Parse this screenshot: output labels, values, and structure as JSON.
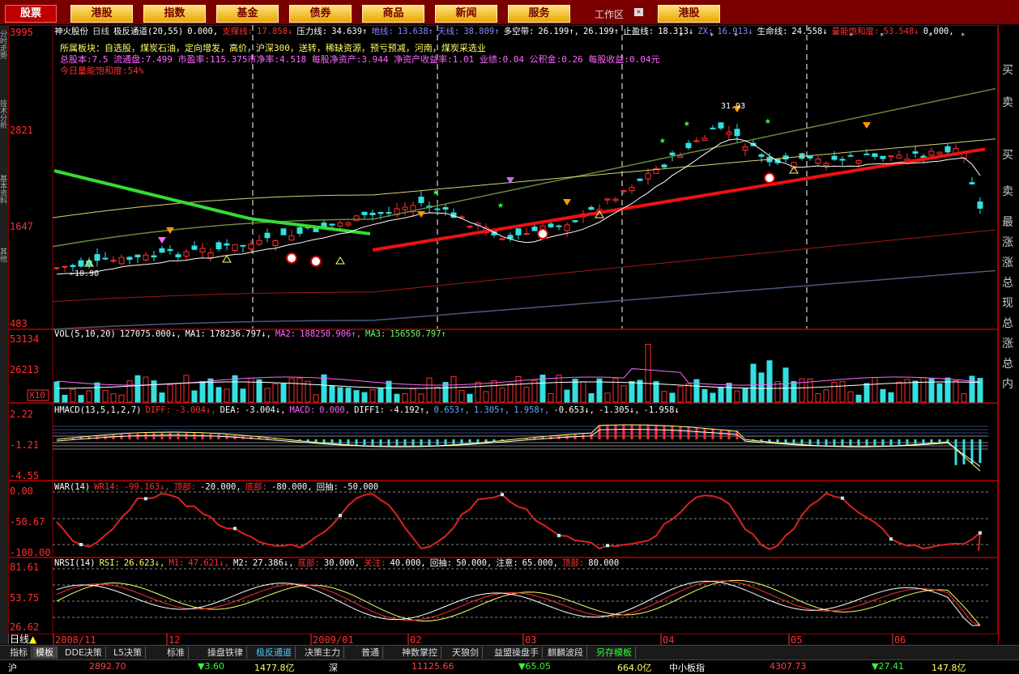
{
  "topbar": {
    "home": "股票",
    "buttons": [
      "港股",
      "指数",
      "基金",
      "债券",
      "商品",
      "新闻",
      "服务"
    ],
    "workspace": "工作区",
    "workspace_close": "✕",
    "right_button": "港股"
  },
  "leftbar": [
    "分时走势",
    "技术分析",
    "基本资料",
    "其他"
  ],
  "rightbar": [
    "买",
    "卖",
    "买",
    "卖",
    "最",
    "涨",
    "涨",
    "总",
    "现",
    "总",
    "涨",
    "总",
    "内"
  ],
  "main_panel": {
    "y_ticks": [
      "3995",
      "2821",
      "1647",
      "483"
    ],
    "header": [
      {
        "t": "神火股份",
        "c": "#ffffff"
      },
      {
        "t": "日线",
        "c": "#dddddd"
      },
      {
        "t": "极反通道(20,55)",
        "c": "#ffffff"
      },
      {
        "t": "0.000,",
        "c": "#ffffff"
      },
      {
        "t": "支撑线:",
        "c": "#ff3030"
      },
      {
        "t": "17.858↓",
        "c": "#ff3030"
      },
      {
        "t": "压力线:",
        "c": "#ffffff"
      },
      {
        "t": "34.639↑",
        "c": "#ffffff"
      },
      {
        "t": "地线:",
        "c": "#8888ff"
      },
      {
        "t": "13.638↑",
        "c": "#8888ff"
      },
      {
        "t": "天线:",
        "c": "#8888ff"
      },
      {
        "t": "38.809↑",
        "c": "#8888ff"
      },
      {
        "t": "多空带:",
        "c": "#ffffff"
      },
      {
        "t": "26.199↑,",
        "c": "#ffffff"
      },
      {
        "t": "26.199↑",
        "c": "#ffffff"
      },
      {
        "t": "止盈线:",
        "c": "#ffffff"
      },
      {
        "t": "18.313↓",
        "c": "#ffffff"
      },
      {
        "t": "ZX:",
        "c": "#8888ff"
      },
      {
        "t": "16.913↓",
        "c": "#8888ff"
      },
      {
        "t": "生命线:",
        "c": "#ffffff"
      },
      {
        "t": "24.558↓",
        "c": "#ffffff"
      },
      {
        "t": "量能饱和度:",
        "c": "#ff3030"
      },
      {
        "t": "53.548↓",
        "c": "#ff3030"
      },
      {
        "t": "0.000,",
        "c": "#ffffff"
      }
    ],
    "info_line1": "所属板块：自选股，煤炭石油，定向增发，高价，沪深300，送转，稀缺资源，预亏预减，河南，煤炭采选业",
    "info_line2": "总股本:7.5        流通盘:7.499  市盈率:115.375市净率:4.518  每股净资产:3.944 净资产收益率:1.01        业绩:0.04  公积金:0.26   每股收益:0.04元",
    "info_line3": "今日量能饱和度:54%",
    "low_label": "←10.90",
    "high_label": "31.93"
  },
  "vol_panel": {
    "y_ticks": [
      "53134",
      "26213"
    ],
    "unit": "X10",
    "header": [
      {
        "t": "VOL(5,10,20)",
        "c": "#ffffff"
      },
      {
        "t": "127075.000↓,",
        "c": "#ffffff"
      },
      {
        "t": "MA1:",
        "c": "#ffffff"
      },
      {
        "t": "178236.797↓,",
        "c": "#ffffff"
      },
      {
        "t": "MA2:",
        "c": "#ff66ff"
      },
      {
        "t": "188250.906↑,",
        "c": "#ff66ff"
      },
      {
        "t": "MA3:",
        "c": "#66ff66"
      },
      {
        "t": "156550.797↑",
        "c": "#66ff66"
      }
    ]
  },
  "macd_panel": {
    "y_ticks": [
      "2.22",
      "-1.21",
      "-4.55"
    ],
    "header": [
      {
        "t": "HMACD(13,5,1,2,7)",
        "c": "#ffffff"
      },
      {
        "t": "DIFF:",
        "c": "#ff3030"
      },
      {
        "t": "-3.004↓,",
        "c": "#ff3030"
      },
      {
        "t": "DEA:",
        "c": "#ffffff"
      },
      {
        "t": "-3.004↓,",
        "c": "#ffffff"
      },
      {
        "t": "MACD:",
        "c": "#ff66ff"
      },
      {
        "t": "0.000,",
        "c": "#ff66ff"
      },
      {
        "t": "DIFF1:",
        "c": "#ffffff"
      },
      {
        "t": "-4.192↑,",
        "c": "#ffffff"
      },
      {
        "t": "0.653↑,",
        "c": "#66aaff"
      },
      {
        "t": "1.305↑,",
        "c": "#66aaff"
      },
      {
        "t": "1.958↑,",
        "c": "#66aaff"
      },
      {
        "t": "-0.653↓,",
        "c": "#ffffff"
      },
      {
        "t": "-1.305↓,",
        "c": "#ffffff"
      },
      {
        "t": "-1.958↓",
        "c": "#ffffff"
      }
    ]
  },
  "war_panel": {
    "y_ticks": [
      "0.00",
      "-50.67",
      "-100.00"
    ],
    "header": [
      {
        "t": "WAR(14)",
        "c": "#ffffff"
      },
      {
        "t": "WR14:",
        "c": "#ff3030"
      },
      {
        "t": "-99.163↓,",
        "c": "#ff3030"
      },
      {
        "t": "顶部:",
        "c": "#ff3030"
      },
      {
        "t": "-20.000,",
        "c": "#ffffff"
      },
      {
        "t": "底部:",
        "c": "#ff3030"
      },
      {
        "t": "-80.000,",
        "c": "#ffffff"
      },
      {
        "t": "回抽:",
        "c": "#ffffff"
      },
      {
        "t": "-50.000",
        "c": "#ffffff"
      }
    ]
  },
  "rsi_panel": {
    "y_ticks": [
      "81.61",
      "53.75",
      "26.62"
    ],
    "header": [
      {
        "t": "NRSI(14)",
        "c": "#ffffff"
      },
      {
        "t": "RSI:",
        "c": "#ffff66"
      },
      {
        "t": "26.623↓,",
        "c": "#ffff66"
      },
      {
        "t": "M1:",
        "c": "#ff3030"
      },
      {
        "t": "47.621↓,",
        "c": "#ff3030"
      },
      {
        "t": "M2:",
        "c": "#ffffff"
      },
      {
        "t": "27.386↓,",
        "c": "#ffffff"
      },
      {
        "t": "底部:",
        "c": "#ff3030"
      },
      {
        "t": "30.000,",
        "c": "#ffffff"
      },
      {
        "t": "关注:",
        "c": "#ff3030"
      },
      {
        "t": "40.000,",
        "c": "#ffffff"
      },
      {
        "t": "回抽:",
        "c": "#ffffff"
      },
      {
        "t": "50.000,",
        "c": "#ffffff"
      },
      {
        "t": "注意:",
        "c": "#ffffff"
      },
      {
        "t": "65.000,",
        "c": "#ffffff"
      },
      {
        "t": "顶部:",
        "c": "#ff3030"
      },
      {
        "t": "80.000",
        "c": "#ffffff"
      }
    ]
  },
  "time_axis": [
    "2008/11",
    "12",
    "2009/01",
    "02",
    "03",
    "04",
    "05",
    "06"
  ],
  "day_button": "日线",
  "tabs": [
    {
      "label": "指标",
      "style": "normal"
    },
    {
      "label": "模板",
      "style": "sel"
    },
    {
      "label": "DDE决策",
      "style": "normal"
    },
    {
      "label": "L5决策",
      "style": "normal"
    },
    {
      "label": "标准",
      "style": "normal"
    },
    {
      "label": "操盘铁律",
      "style": "normal"
    },
    {
      "label": "极反通道",
      "style": "hl"
    },
    {
      "label": "决策主力",
      "style": "normal"
    },
    {
      "label": "普通",
      "style": "normal"
    },
    {
      "label": "神数掌控",
      "style": "normal"
    },
    {
      "label": "天狼剑",
      "style": "normal"
    },
    {
      "label": "益盟操盘手",
      "style": "normal"
    },
    {
      "label": "麒麟波段",
      "style": "normal"
    },
    {
      "label": "另存模板",
      "style": "hl2"
    }
  ],
  "status": [
    {
      "t": "沪",
      "c": "#ffffff"
    },
    {
      "t": "2892.70",
      "c": "#ff4040"
    },
    {
      "t": "▼3.60",
      "c": "#33ff33"
    },
    {
      "t": "1477.8亿",
      "c": "#ffff66"
    },
    {
      "t": "深",
      "c": "#ffffff"
    },
    {
      "t": "11125.66",
      "c": "#ff4040"
    },
    {
      "t": "▼65.05",
      "c": "#33ff33"
    },
    {
      "t": "664.0亿",
      "c": "#ffff66"
    },
    {
      "t": "中小板指",
      "c": "#ffffff"
    },
    {
      "t": "4307.73",
      "c": "#ff4040"
    },
    {
      "t": "▼27.41",
      "c": "#33ff33"
    },
    {
      "t": "147.8亿",
      "c": "#ffff66"
    }
  ],
  "colors": {
    "up": "#ff3030",
    "down": "#33e0e0",
    "grid": "#8b0000",
    "ma_green": "#33dd33",
    "ma_red": "#ee1111"
  }
}
